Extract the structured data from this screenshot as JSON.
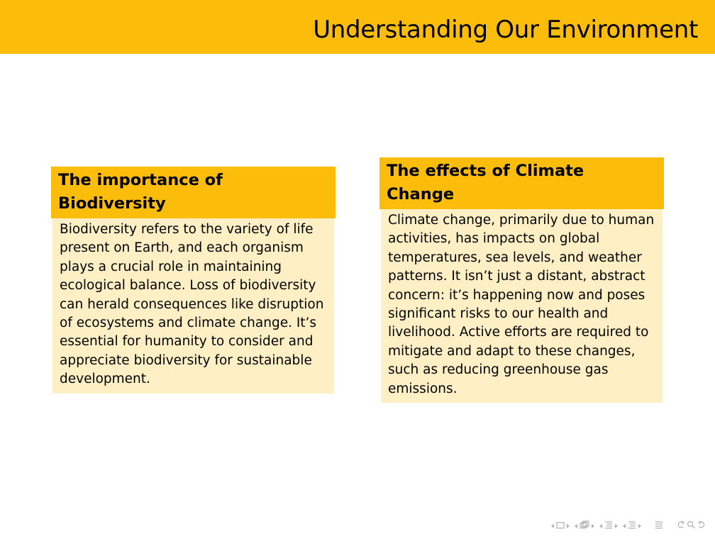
{
  "frame": {
    "title": "Understanding Our Environment"
  },
  "blocks": [
    {
      "title": "The importance of Biodiversity",
      "body": "Biodiversity refers to the variety of life present on Earth, and each organism plays a crucial role in maintaining ecological balance. Loss of biodiversity can herald consequences like disruption of ecosystems and climate change. It’s essential for humanity to consider and appreciate biodiversity for sustainable development."
    },
    {
      "title": "The effects of Climate Change",
      "body": "Climate change, primarily due to human activities, has impacts on global temperatures, sea levels, and weather patterns. It isn’t just a distant, abstract concern: it’s happening now and poses significant risks to our health and livelihood. Active efforts are required to mitigate and adapt to these changes, such as reducing greenhouse gas emissions."
    }
  ],
  "colors": {
    "accent": "#fbbc0a",
    "block_body_bg": "#fef0c4",
    "nav_icons": "#b0b0b0"
  },
  "nav_icons": [
    "nav-slide-prev-arrow-icon",
    "nav-slide-icon",
    "nav-slide-next-arrow-icon",
    "nav-frame-prev-arrow-icon",
    "nav-frame-icon",
    "nav-frame-next-arrow-icon",
    "nav-subsection-prev-arrow-icon",
    "nav-subsection-icon",
    "nav-subsection-next-arrow-icon",
    "nav-section-prev-arrow-icon",
    "nav-section-icon",
    "nav-section-next-arrow-icon",
    "nav-outline-icon",
    "nav-undo-icon",
    "nav-search-icon",
    "nav-redo-icon"
  ]
}
